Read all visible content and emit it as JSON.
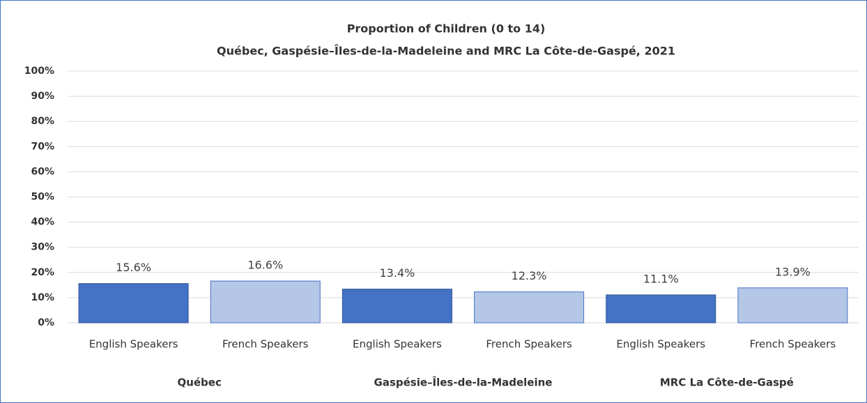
{
  "chart_data": {
    "type": "bar",
    "title": "Proportion of Children (0 to 14)",
    "subtitle": "Québec, Gaspésie–Îles-de-la-Madeleine  and MRC La Côte-de-Gaspé, 2021",
    "categories": [
      "English Speakers",
      "French Speakers",
      "English Speakers",
      "French Speakers",
      "English Speakers",
      "French Speakers"
    ],
    "groups": [
      "Québec",
      "Gaspésie–Îles-de-la-Madeleine",
      "MRC La Côte-de-Gaspé"
    ],
    "values": [
      15.6,
      16.6,
      13.4,
      12.3,
      11.1,
      13.9
    ],
    "value_labels": [
      "15.6%",
      "16.6%",
      "13.4%",
      "12.3%",
      "11.1%",
      "13.9%"
    ],
    "colors": [
      "#4472c4",
      "#b4c7e7",
      "#4472c4",
      "#b4c7e7",
      "#4472c4",
      "#b4c7e7"
    ],
    "ylim": [
      0,
      100
    ],
    "yticks": [
      {
        "value": 0,
        "label": "0%"
      },
      {
        "value": 10,
        "label": "10%"
      },
      {
        "value": 20,
        "label": "20%"
      },
      {
        "value": 30,
        "label": "30%"
      },
      {
        "value": 40,
        "label": "40%"
      },
      {
        "value": 50,
        "label": "50%"
      },
      {
        "value": 60,
        "label": "60%"
      },
      {
        "value": 70,
        "label": "70%"
      },
      {
        "value": 80,
        "label": "80%"
      },
      {
        "value": 90,
        "label": "90%"
      },
      {
        "value": 100,
        "label": "100%"
      }
    ],
    "grid": true
  }
}
